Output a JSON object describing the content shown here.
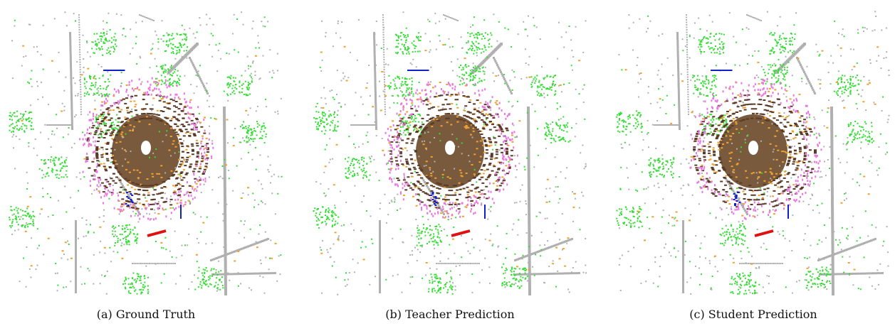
{
  "figure": {
    "panels": [
      {
        "caption": "(a) Ground Truth"
      },
      {
        "caption": "(b) Teacher Prediction"
      },
      {
        "caption": "(c) Student Prediction"
      }
    ]
  }
}
